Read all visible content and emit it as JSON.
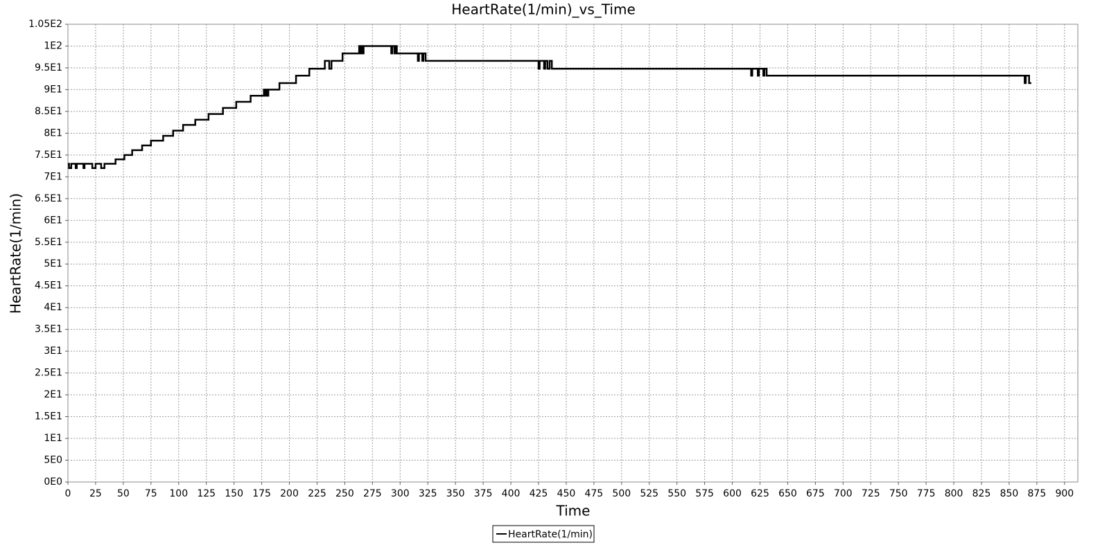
{
  "chart_data": {
    "type": "line",
    "title": "HeartRate(1/min)_vs_Time",
    "x_label": "Time",
    "y_label": "HeartRate(1/min)",
    "grid": true,
    "legend": "bottom",
    "xlim": [
      0,
      912
    ],
    "ylim": [
      0,
      105
    ],
    "xticks": [
      0,
      25,
      50,
      75,
      100,
      125,
      150,
      175,
      200,
      225,
      250,
      275,
      300,
      325,
      350,
      375,
      400,
      425,
      450,
      475,
      500,
      525,
      550,
      575,
      600,
      625,
      650,
      675,
      700,
      725,
      750,
      775,
      800,
      825,
      850,
      875,
      900
    ],
    "yticks": [
      {
        "value": 0,
        "label": "0E0"
      },
      {
        "value": 5,
        "label": "5E0"
      },
      {
        "value": 10,
        "label": "1E1"
      },
      {
        "value": 15,
        "label": "1.5E1"
      },
      {
        "value": 20,
        "label": "2E1"
      },
      {
        "value": 25,
        "label": "2.5E1"
      },
      {
        "value": 30,
        "label": "3E1"
      },
      {
        "value": 35,
        "label": "3.5E1"
      },
      {
        "value": 40,
        "label": "4E1"
      },
      {
        "value": 45,
        "label": "4.5E1"
      },
      {
        "value": 50,
        "label": "5E1"
      },
      {
        "value": 55,
        "label": "5.5E1"
      },
      {
        "value": 60,
        "label": "6E1"
      },
      {
        "value": 65,
        "label": "6.5E1"
      },
      {
        "value": 70,
        "label": "7E1"
      },
      {
        "value": 75,
        "label": "7.5E1"
      },
      {
        "value": 80,
        "label": "8E1"
      },
      {
        "value": 85,
        "label": "8.5E1"
      },
      {
        "value": 90,
        "label": "9E1"
      },
      {
        "value": 95,
        "label": "9.5E1"
      },
      {
        "value": 100,
        "label": "1E2"
      },
      {
        "value": 105,
        "label": "1.05E2"
      }
    ],
    "x": [
      0,
      1,
      1,
      3,
      3,
      7,
      7,
      8,
      8,
      14,
      14,
      15,
      15,
      22,
      22,
      25,
      25,
      30,
      30,
      33,
      33,
      43,
      43,
      51,
      51,
      58,
      58,
      67,
      67,
      75,
      75,
      86,
      86,
      95,
      95,
      104,
      104,
      115,
      115,
      127,
      127,
      140,
      140,
      152,
      152,
      165,
      165,
      177,
      177,
      178,
      178,
      179,
      179,
      180,
      180,
      181,
      181,
      191,
      191,
      206,
      206,
      218,
      218,
      232,
      232,
      236,
      236,
      238,
      238,
      248,
      248,
      263,
      263,
      264,
      264,
      265,
      265,
      266,
      266,
      267,
      267,
      292,
      292,
      293,
      293,
      295,
      295,
      296,
      296,
      297,
      297,
      316,
      316,
      317,
      317,
      320,
      320,
      321,
      321,
      323,
      323,
      425,
      425,
      426,
      426,
      430,
      430,
      431,
      431,
      433,
      433,
      435,
      435,
      437,
      437,
      617,
      617,
      618,
      618,
      623,
      623,
      624,
      624,
      628,
      628,
      629,
      629,
      631,
      631,
      864,
      864,
      865,
      865,
      868,
      868,
      870
    ],
    "series": [
      {
        "name": "HeartRate(1/min)",
        "color": "#000000",
        "values": [
          73,
          73,
          72,
          72,
          73,
          73,
          72,
          72,
          73,
          73,
          72,
          72,
          73,
          73,
          72,
          72,
          73,
          73,
          72,
          72,
          73,
          73,
          74,
          74,
          75,
          75,
          76.1,
          76.1,
          77.2,
          77.2,
          78.3,
          78.3,
          79.4,
          79.4,
          80.6,
          80.6,
          81.9,
          81.9,
          83.1,
          83.1,
          84.4,
          84.4,
          85.8,
          85.8,
          87.2,
          87.2,
          88.6,
          88.6,
          90,
          90,
          88.6,
          88.6,
          90,
          90,
          88.6,
          88.6,
          90,
          90,
          91.5,
          91.5,
          93.2,
          93.2,
          94.8,
          94.8,
          96.6,
          96.6,
          94.8,
          94.8,
          96.6,
          96.6,
          98.3,
          98.3,
          100,
          100,
          98.3,
          98.3,
          100,
          100,
          98.3,
          98.3,
          100,
          100,
          98.3,
          98.3,
          100,
          100,
          98.3,
          98.3,
          100,
          100,
          98.3,
          98.3,
          96.6,
          96.6,
          98.3,
          98.3,
          96.6,
          96.6,
          98.3,
          98.3,
          96.6,
          96.6,
          94.8,
          94.8,
          96.6,
          96.6,
          94.8,
          94.8,
          96.6,
          96.6,
          94.8,
          94.8,
          96.6,
          96.6,
          94.8,
          94.8,
          93.2,
          93.2,
          94.8,
          94.8,
          93.2,
          93.2,
          94.8,
          94.8,
          93.2,
          93.2,
          94.8,
          94.8,
          93.2,
          93.2,
          91.5,
          91.5,
          93.2,
          93.2,
          91.5,
          91.5
        ]
      }
    ]
  }
}
